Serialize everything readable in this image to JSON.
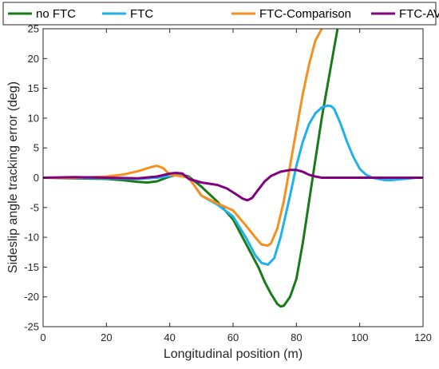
{
  "chart_data": {
    "type": "line",
    "title": "",
    "xlabel": "Longitudinal position (m)",
    "ylabel": "Sideslip angle tracking error (deg)",
    "xlim": [
      0,
      120
    ],
    "ylim": [
      -25,
      25
    ],
    "xticks": [
      0,
      20,
      40,
      60,
      80,
      100,
      120
    ],
    "xtick_labels": [
      "0",
      "20",
      "40",
      "60",
      "80",
      "100",
      "120"
    ],
    "yticks": [
      -25,
      -20,
      -15,
      -10,
      -5,
      0,
      5,
      10,
      15,
      20,
      25
    ],
    "ytick_labels": [
      "-25",
      "-20",
      "-15",
      "-10",
      "-5",
      "0",
      "5",
      "10",
      "15",
      "20",
      "25"
    ],
    "grid": false,
    "legend_position": "top",
    "series": [
      {
        "name": "no FTC",
        "color": "#1a7a1a",
        "x": [
          0,
          10,
          20,
          25,
          30,
          33,
          36,
          40,
          43,
          46,
          50,
          55,
          60,
          65,
          68,
          70,
          72,
          74,
          75,
          76,
          78,
          80,
          82,
          84,
          86,
          88,
          90,
          92,
          93
        ],
        "y": [
          0,
          -0.1,
          -0.2,
          -0.4,
          -0.7,
          -0.8,
          -0.6,
          0.2,
          0.6,
          0.2,
          -1.5,
          -4,
          -7,
          -12,
          -15,
          -17.5,
          -19.5,
          -21.2,
          -21.6,
          -21.5,
          -20,
          -17,
          -11,
          -4,
          3,
          10,
          16,
          22,
          25
        ]
      },
      {
        "name": "FTC",
        "color": "#1fb2ea",
        "x": [
          0,
          10,
          20,
          30,
          36,
          40,
          43,
          46,
          50,
          55,
          60,
          64,
          67,
          69,
          71,
          73,
          75,
          78,
          80,
          82,
          84,
          86,
          88,
          90,
          91,
          92,
          94,
          96,
          98,
          100,
          102,
          104,
          106,
          108,
          110,
          112,
          114,
          116,
          118,
          120
        ],
        "y": [
          0,
          0,
          -0.1,
          -0.2,
          0,
          0.3,
          0.6,
          0,
          -3,
          -4.5,
          -6.5,
          -10,
          -13,
          -14.3,
          -14.6,
          -13.5,
          -10,
          -3,
          2,
          6,
          9,
          10.8,
          11.8,
          12.1,
          12,
          11.5,
          9,
          6,
          3.5,
          1.5,
          0.5,
          0,
          -0.2,
          -0.4,
          -0.4,
          -0.3,
          -0.2,
          -0.1,
          0,
          0
        ]
      },
      {
        "name": "FTC-Comparison",
        "color": "#f5901e",
        "x": [
          0,
          10,
          20,
          25,
          30,
          33,
          35,
          36,
          38,
          40,
          43,
          46,
          50,
          55,
          60,
          64,
          67,
          69,
          71,
          72,
          74,
          76,
          78,
          80,
          82,
          84,
          86,
          88
        ],
        "y": [
          0,
          0,
          0.2,
          0.5,
          1.1,
          1.6,
          1.9,
          2,
          1.6,
          0.5,
          0.3,
          0,
          -3,
          -4.3,
          -5.5,
          -8,
          -10,
          -11.2,
          -11.4,
          -11,
          -8.5,
          -4,
          2,
          8,
          14,
          19,
          23,
          25
        ]
      },
      {
        "name": "FTC-AVP",
        "color": "#800080",
        "x": [
          0,
          10,
          20,
          30,
          36,
          40,
          42,
          44,
          46,
          50,
          55,
          58,
          61,
          63,
          64.5,
          66,
          68,
          70,
          72,
          75,
          78,
          80,
          82,
          84,
          86,
          88,
          90,
          100,
          110,
          120
        ],
        "y": [
          0,
          0.1,
          0,
          -0.1,
          0.2,
          0.7,
          0.8,
          0.7,
          -0.2,
          -0.8,
          -1.2,
          -1.8,
          -2.8,
          -3.5,
          -3.8,
          -3.4,
          -2,
          -0.6,
          0.3,
          1,
          1.3,
          1.3,
          1,
          0.5,
          0.2,
          0,
          0,
          0,
          0,
          0
        ]
      }
    ]
  }
}
